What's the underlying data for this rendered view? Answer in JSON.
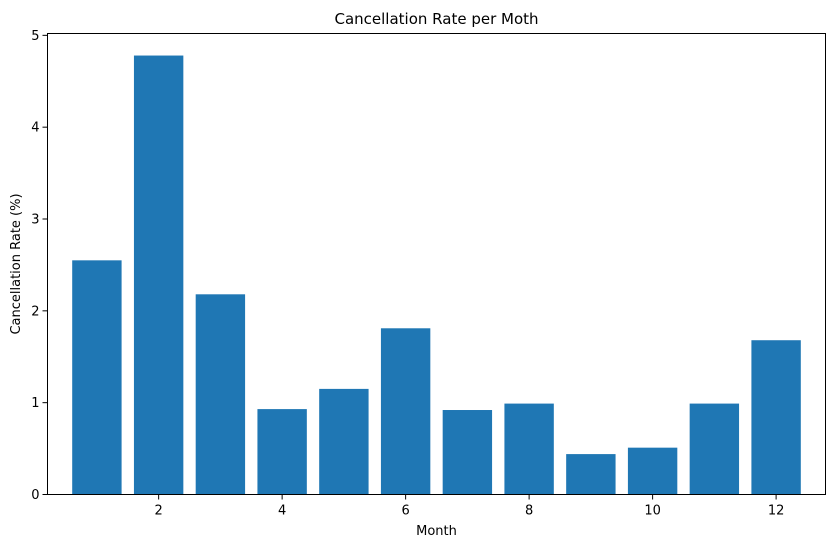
{
  "chart_data": {
    "type": "bar",
    "title": "Cancellation Rate per Moth",
    "xlabel": "Month",
    "ylabel": "Cancellation Rate (%)",
    "x": [
      1,
      2,
      3,
      4,
      5,
      6,
      7,
      8,
      9,
      10,
      11,
      12
    ],
    "values": [
      2.55,
      4.78,
      2.18,
      0.93,
      1.15,
      1.81,
      0.92,
      0.99,
      0.44,
      0.51,
      0.99,
      1.68
    ],
    "xlim": [
      0.2,
      12.8
    ],
    "ylim": [
      0,
      5.02
    ],
    "xticks": [
      2,
      4,
      6,
      8,
      10,
      12
    ],
    "yticks": [
      0,
      1,
      2,
      3,
      4,
      5
    ],
    "bar_color": "#1f77b4",
    "grid": false,
    "legend": "none"
  }
}
